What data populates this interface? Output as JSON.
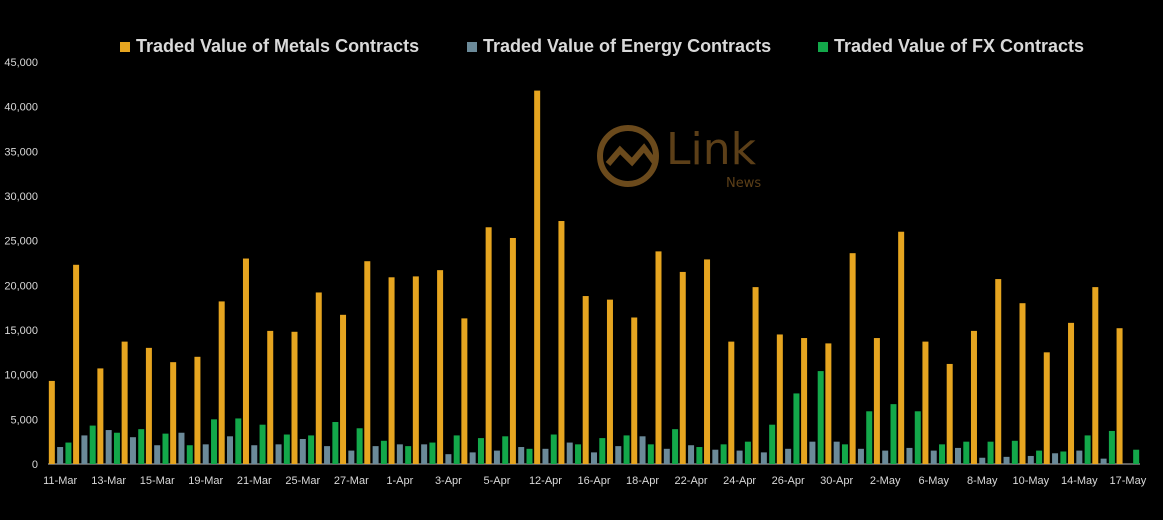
{
  "watermark": {
    "brand": "Link",
    "sub": "News"
  },
  "chart_data": {
    "type": "bar",
    "ylim": [
      0,
      45000
    ],
    "yticks": [
      0,
      5000,
      10000,
      15000,
      20000,
      25000,
      30000,
      35000,
      40000,
      45000
    ],
    "ytick_labels": [
      "0",
      "5,000",
      "10,000",
      "15,000",
      "20,000",
      "25,000",
      "30,000",
      "35,000",
      "40,000",
      "45,000"
    ],
    "xtick_labels": [
      "11-Mar",
      "13-Mar",
      "15-Mar",
      "19-Mar",
      "21-Mar",
      "25-Mar",
      "27-Mar",
      "1-Apr",
      "3-Apr",
      "5-Apr",
      "12-Apr",
      "16-Apr",
      "18-Apr",
      "22-Apr",
      "24-Apr",
      "26-Apr",
      "30-Apr",
      "2-May",
      "6-May",
      "8-May",
      "10-May",
      "14-May",
      "17-May"
    ],
    "legend_position": "top",
    "grid": false,
    "series": [
      {
        "name": "Traded Value of Metals Contracts",
        "color": "#E6A520",
        "values": [
          9300,
          22300,
          10700,
          13700,
          13000,
          11400,
          12000,
          18200,
          23000,
          14900,
          14800,
          19200,
          16700,
          22700,
          20900,
          21000,
          21700,
          16300,
          26500,
          25300,
          41800,
          27200,
          18800,
          18400,
          16400,
          23800,
          21500,
          22900,
          13700,
          19800,
          14500,
          14100,
          13500,
          23600,
          14100,
          26000,
          13700,
          11200,
          14900,
          20700,
          18000,
          12500,
          15800,
          19800,
          15200
        ]
      },
      {
        "name": "Traded Value of Energy Contracts",
        "color": "#6B8A99",
        "values": [
          1900,
          3200,
          3800,
          3000,
          2100,
          3500,
          2200,
          3100,
          2100,
          2200,
          2800,
          2000,
          1500,
          2000,
          2200,
          2200,
          1100,
          1300,
          1500,
          1900,
          1700,
          2400,
          1300,
          2000,
          3100,
          1700,
          2100,
          1600,
          1500,
          1300,
          1700,
          2500,
          2500,
          1700,
          1500,
          1800,
          1500,
          1800,
          700,
          800,
          900,
          1200,
          1500,
          600,
          0
        ]
      },
      {
        "name": "Traded Value of FX Contracts",
        "color": "#13A84A",
        "values": [
          2400,
          4300,
          3500,
          3900,
          3400,
          2100,
          5000,
          5100,
          4400,
          3300,
          3200,
          4700,
          4000,
          2600,
          2000,
          2400,
          3200,
          2900,
          3100,
          1700,
          3300,
          2200,
          2900,
          3200,
          2200,
          3900,
          1900,
          2200,
          2500,
          4400,
          7900,
          10400,
          2200,
          5900,
          6700,
          5900,
          2200,
          2500,
          2500,
          2600,
          1500,
          1400,
          3200,
          3700,
          1600
        ]
      }
    ]
  }
}
